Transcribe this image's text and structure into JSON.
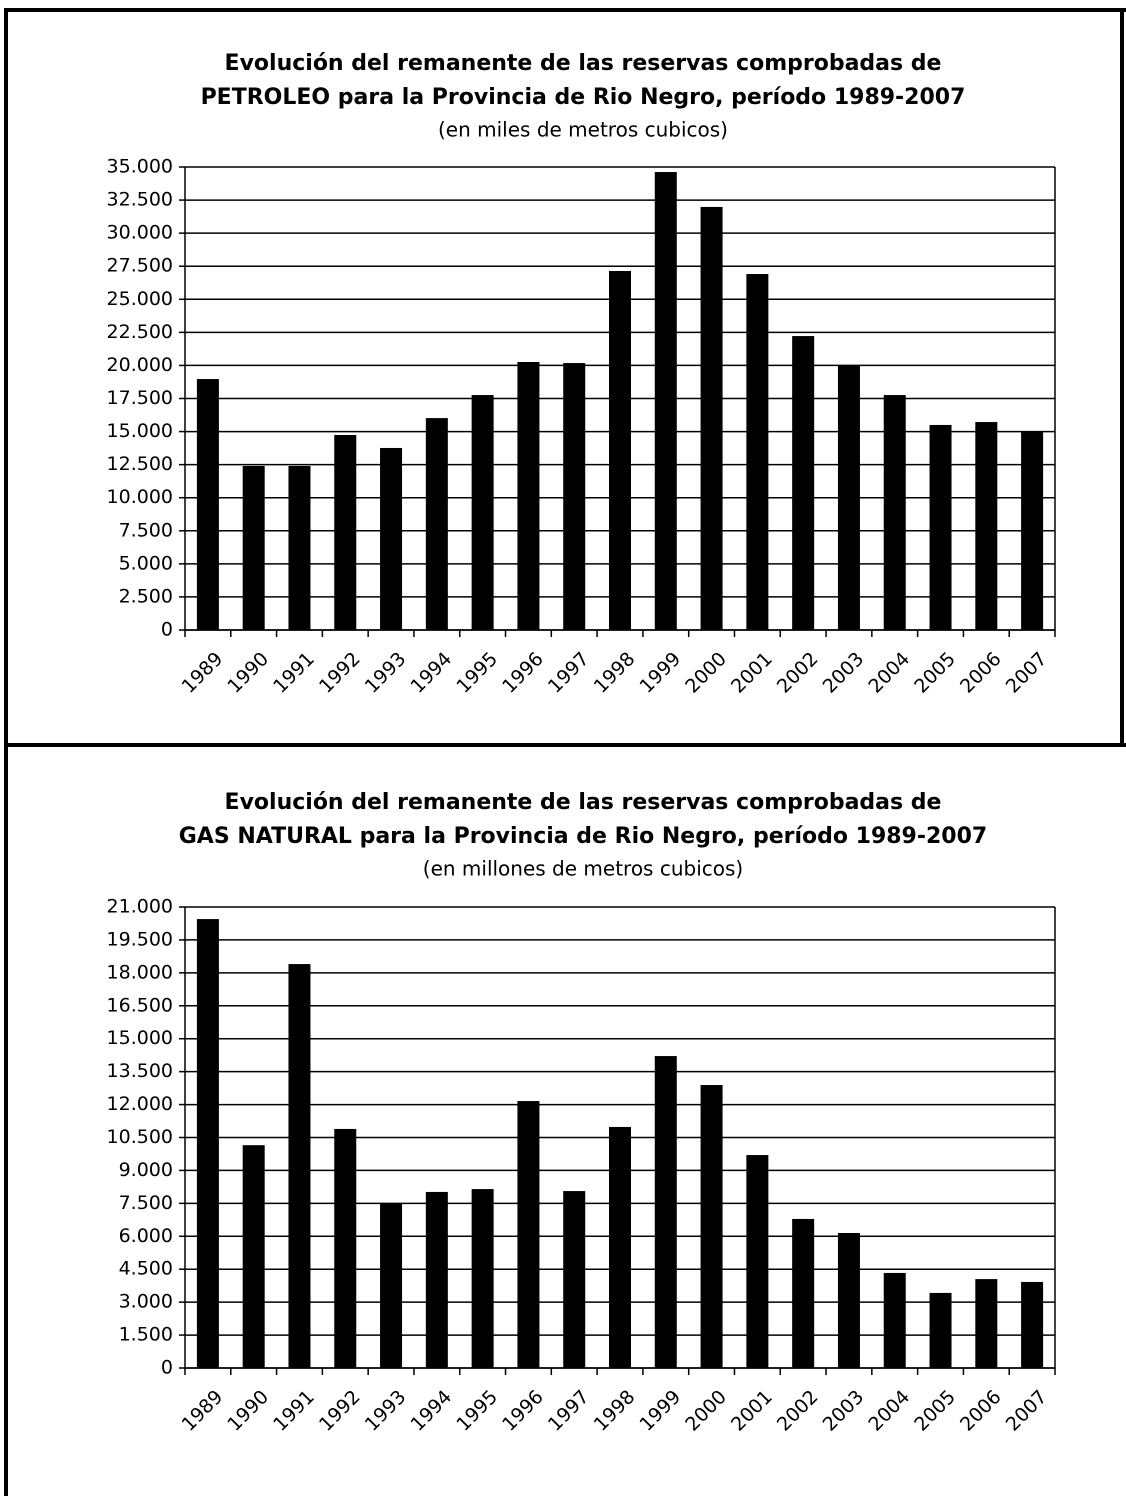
{
  "chart_data": [
    {
      "type": "bar",
      "title": [
        "Evolución del remanente de las reservas comprobadas de",
        "PETROLEO para la Provincia de Rio Negro, período 1989-2007"
      ],
      "subtitle": "(en miles de metros cubicos)",
      "categories": [
        "1989",
        "1990",
        "1991",
        "1992",
        "1993",
        "1994",
        "1995",
        "1996",
        "1997",
        "1998",
        "1999",
        "2000",
        "2001",
        "2002",
        "2003",
        "2004",
        "2005",
        "2006",
        "2007"
      ],
      "values": [
        18970,
        12400,
        12400,
        14740,
        13760,
        16020,
        17760,
        20260,
        20180,
        27140,
        34620,
        31980,
        26910,
        22220,
        20030,
        17760,
        15500,
        15720,
        15040
      ],
      "color": "#000000",
      "ylim": [
        0,
        35000
      ],
      "yticks": [
        0,
        {
          "value": 2500,
          "label": "2.500"
        },
        {
          "value": 5000,
          "label": "5.000"
        },
        {
          "value": 7500,
          "label": "7.500"
        },
        {
          "value": 10000,
          "label": "10.000"
        },
        {
          "value": 12500,
          "label": "12.500"
        },
        {
          "value": 15000,
          "label": "15.000"
        },
        {
          "value": 17500,
          "label": "17.500"
        },
        {
          "value": 20000,
          "label": "20.000"
        },
        {
          "value": 22500,
          "label": "22.500"
        },
        {
          "value": 25000,
          "label": "25.000"
        },
        {
          "value": 27500,
          "label": "27.500"
        },
        {
          "value": 30000,
          "label": "30.000"
        },
        {
          "value": 32500,
          "label": "32.500"
        },
        {
          "value": 35000,
          "label": "35.000"
        }
      ],
      "grid": true
    },
    {
      "type": "bar",
      "title": [
        "Evolución del remanente de las reservas comprobadas de",
        "GAS NATURAL para la Provincia de Rio Negro, período 1989-2007"
      ],
      "subtitle": "(en millones de metros cubicos)",
      "categories": [
        "1989",
        "1990",
        "1991",
        "1992",
        "1993",
        "1994",
        "1995",
        "1996",
        "1997",
        "1998",
        "1999",
        "2000",
        "2001",
        "2002",
        "2003",
        "2004",
        "2005",
        "2006",
        "2007"
      ],
      "values": [
        20450,
        10150,
        18400,
        10890,
        7500,
        8020,
        8150,
        12160,
        8060,
        10980,
        14210,
        12890,
        9700,
        6790,
        6150,
        4330,
        3420,
        4050,
        3920
      ],
      "color": "#000000",
      "ylim": [
        0,
        21000
      ],
      "yticks": [
        0,
        {
          "value": 1500,
          "label": "1.500"
        },
        {
          "value": 3000,
          "label": "3.000"
        },
        {
          "value": 4500,
          "label": "4.500"
        },
        {
          "value": 6000,
          "label": "6.000"
        },
        {
          "value": 7500,
          "label": "7.500"
        },
        {
          "value": 9000,
          "label": "9.000"
        },
        {
          "value": 10500,
          "label": "10.500"
        },
        {
          "value": 12000,
          "label": "12.000"
        },
        {
          "value": 13500,
          "label": "13.500"
        },
        {
          "value": 15000,
          "label": "15.000"
        },
        {
          "value": 16500,
          "label": "16.500"
        },
        {
          "value": 18000,
          "label": "18.000"
        },
        {
          "value": 19500,
          "label": "19.500"
        },
        {
          "value": 21000,
          "label": "21.000"
        }
      ],
      "grid": true
    }
  ]
}
